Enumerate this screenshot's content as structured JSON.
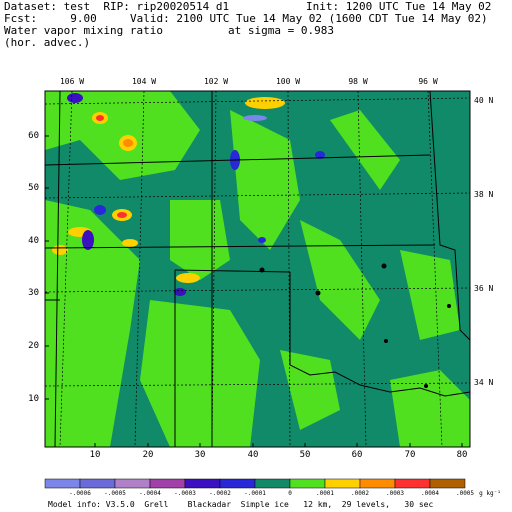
{
  "header": {
    "dataset_line": "Dataset: test  RIP: rip20020514 d1",
    "init_line": "Init: 1200 UTC Tue 14 May 02",
    "fcst_line": "Fcst:     9.00",
    "valid_line": "Valid: 2100 UTC Tue 14 May 02 (1600 CDT Tue 14 May 02)",
    "field_line": "Water vapor mixing ratio",
    "sigma_line": "at sigma = 0.983",
    "advec_line": "(hor. advec.)"
  },
  "map": {
    "x_ticks": [
      "10",
      "20",
      "30",
      "40",
      "50",
      "60",
      "70",
      "80"
    ],
    "y_ticks": [
      "10",
      "20",
      "30",
      "40",
      "50",
      "60"
    ],
    "lon_labels": [
      "106 W",
      "104 W",
      "102 W",
      "100 W",
      "98 W",
      "96 W"
    ],
    "lat_labels": [
      "40 N",
      "38 N",
      "36 N",
      "34 N"
    ]
  },
  "colorbar": {
    "labels": [
      "-.0006",
      "-.0005",
      "-.0004",
      "-.0003",
      "-.0002",
      "-.0001",
      "0",
      ".0001",
      ".0002",
      ".0003",
      ".0004",
      ".0005"
    ],
    "unit": "g kg⁻¹",
    "colors": [
      "#7b86e8",
      "#6a6ad8",
      "#b080c8",
      "#a040a8",
      "#3a10c0",
      "#2828d8",
      "#118a6a",
      "#50e020",
      "#ffd000",
      "#ff8c00",
      "#ff3030",
      "#b06000"
    ]
  },
  "footer": {
    "model_info": "Model info: V3.5.0  Grell    Blackadar  Simple ice   12 km,  29 levels,   30 sec"
  }
}
